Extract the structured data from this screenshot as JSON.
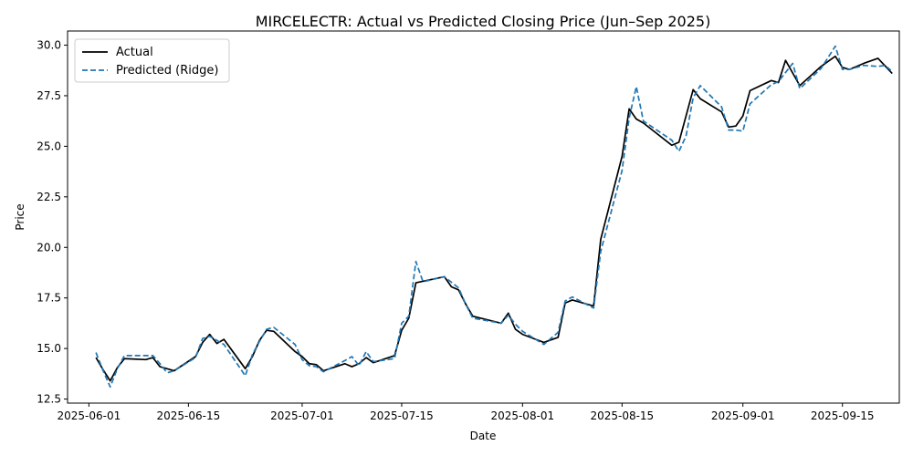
{
  "chart_data": {
    "type": "line",
    "title": "MIRCELECTR: Actual vs Predicted Closing Price (Jun–Sep 2025)",
    "xlabel": "Date",
    "ylabel": "Price",
    "ylim": [
      12.3,
      30.7
    ],
    "xlim": [
      "2025-05-29",
      "2025-09-23"
    ],
    "x_ticks": [
      "2025-06-01",
      "2025-06-15",
      "2025-07-01",
      "2025-07-15",
      "2025-08-01",
      "2025-08-15",
      "2025-09-01",
      "2025-09-15"
    ],
    "y_ticks": [
      "12.5",
      "15.0",
      "17.5",
      "20.0",
      "22.5",
      "25.0",
      "27.5",
      "30.0"
    ],
    "grid": false,
    "legend_position": "top-left",
    "series": [
      {
        "name": "Actual",
        "color": "#000000",
        "style": "solid",
        "points": [
          [
            "2025-06-02",
            14.55
          ],
          [
            "2025-06-03",
            13.95
          ],
          [
            "2025-06-04",
            13.4
          ],
          [
            "2025-06-05",
            14.05
          ],
          [
            "2025-06-06",
            14.5
          ],
          [
            "2025-06-09",
            14.45
          ],
          [
            "2025-06-10",
            14.55
          ],
          [
            "2025-06-11",
            14.1
          ],
          [
            "2025-06-12",
            14.0
          ],
          [
            "2025-06-13",
            13.9
          ],
          [
            "2025-06-16",
            14.6
          ],
          [
            "2025-06-17",
            15.3
          ],
          [
            "2025-06-18",
            15.7
          ],
          [
            "2025-06-19",
            15.25
          ],
          [
            "2025-06-20",
            15.45
          ],
          [
            "2025-06-23",
            14.0
          ],
          [
            "2025-06-24",
            14.6
          ],
          [
            "2025-06-25",
            15.4
          ],
          [
            "2025-06-26",
            15.9
          ],
          [
            "2025-06-27",
            15.85
          ],
          [
            "2025-06-30",
            14.85
          ],
          [
            "2025-07-01",
            14.6
          ],
          [
            "2025-07-02",
            14.25
          ],
          [
            "2025-07-03",
            14.2
          ],
          [
            "2025-07-04",
            13.9
          ],
          [
            "2025-07-07",
            14.25
          ],
          [
            "2025-07-08",
            14.1
          ],
          [
            "2025-07-09",
            14.25
          ],
          [
            "2025-07-10",
            14.55
          ],
          [
            "2025-07-11",
            14.3
          ],
          [
            "2025-07-14",
            14.65
          ],
          [
            "2025-07-15",
            15.9
          ],
          [
            "2025-07-16",
            16.5
          ],
          [
            "2025-07-17",
            18.25
          ],
          [
            "2025-07-21",
            18.55
          ],
          [
            "2025-07-22",
            18.05
          ],
          [
            "2025-07-23",
            17.9
          ],
          [
            "2025-07-24",
            17.2
          ],
          [
            "2025-07-25",
            16.6
          ],
          [
            "2025-07-29",
            16.25
          ],
          [
            "2025-07-30",
            16.75
          ],
          [
            "2025-07-31",
            15.95
          ],
          [
            "2025-08-01",
            15.7
          ],
          [
            "2025-08-04",
            15.3
          ],
          [
            "2025-08-06",
            15.55
          ],
          [
            "2025-08-07",
            17.25
          ],
          [
            "2025-08-08",
            17.4
          ],
          [
            "2025-08-11",
            17.1
          ],
          [
            "2025-08-12",
            20.4
          ],
          [
            "2025-08-15",
            24.5
          ],
          [
            "2025-08-16",
            26.85
          ],
          [
            "2025-08-17",
            26.35
          ],
          [
            "2025-08-18",
            26.15
          ],
          [
            "2025-08-22",
            25.05
          ],
          [
            "2025-08-23",
            25.2
          ],
          [
            "2025-08-25",
            27.8
          ],
          [
            "2025-08-26",
            27.35
          ],
          [
            "2025-08-29",
            26.7
          ],
          [
            "2025-08-30",
            25.95
          ],
          [
            "2025-08-31",
            26.0
          ],
          [
            "2025-09-01",
            26.5
          ],
          [
            "2025-09-02",
            27.75
          ],
          [
            "2025-09-05",
            28.25
          ],
          [
            "2025-09-06",
            28.15
          ],
          [
            "2025-09-07",
            29.25
          ],
          [
            "2025-09-09",
            28.0
          ],
          [
            "2025-09-12",
            28.95
          ],
          [
            "2025-09-14",
            29.45
          ],
          [
            "2025-09-15",
            28.9
          ],
          [
            "2025-09-16",
            28.8
          ],
          [
            "2025-09-18",
            29.1
          ],
          [
            "2025-09-20",
            29.35
          ],
          [
            "2025-09-22",
            28.6
          ]
        ]
      },
      {
        "name": "Predicted (Ridge)",
        "color": "#1f77b4",
        "style": "dashed",
        "points": [
          [
            "2025-06-02",
            14.8
          ],
          [
            "2025-06-03",
            13.9
          ],
          [
            "2025-06-04",
            13.1
          ],
          [
            "2025-06-05",
            14.0
          ],
          [
            "2025-06-06",
            14.65
          ],
          [
            "2025-06-09",
            14.65
          ],
          [
            "2025-06-10",
            14.65
          ],
          [
            "2025-06-11",
            14.25
          ],
          [
            "2025-06-12",
            13.8
          ],
          [
            "2025-06-13",
            13.9
          ],
          [
            "2025-06-16",
            14.55
          ],
          [
            "2025-06-17",
            15.5
          ],
          [
            "2025-06-18",
            15.6
          ],
          [
            "2025-06-19",
            15.4
          ],
          [
            "2025-06-20",
            15.2
          ],
          [
            "2025-06-23",
            13.65
          ],
          [
            "2025-06-24",
            14.7
          ],
          [
            "2025-06-25",
            15.35
          ],
          [
            "2025-06-26",
            15.95
          ],
          [
            "2025-06-27",
            16.05
          ],
          [
            "2025-06-30",
            15.2
          ],
          [
            "2025-07-01",
            14.45
          ],
          [
            "2025-07-02",
            14.15
          ],
          [
            "2025-07-03",
            14.1
          ],
          [
            "2025-07-04",
            13.85
          ],
          [
            "2025-07-07",
            14.4
          ],
          [
            "2025-07-08",
            14.6
          ],
          [
            "2025-07-09",
            14.15
          ],
          [
            "2025-07-10",
            14.85
          ],
          [
            "2025-07-11",
            14.35
          ],
          [
            "2025-07-14",
            14.5
          ],
          [
            "2025-07-15",
            16.25
          ],
          [
            "2025-07-16",
            16.6
          ],
          [
            "2025-07-17",
            19.3
          ],
          [
            "2025-07-18",
            18.3
          ],
          [
            "2025-07-21",
            18.55
          ],
          [
            "2025-07-23",
            18.0
          ],
          [
            "2025-07-24",
            17.2
          ],
          [
            "2025-07-25",
            16.5
          ],
          [
            "2025-07-29",
            16.25
          ],
          [
            "2025-07-30",
            16.65
          ],
          [
            "2025-07-31",
            16.2
          ],
          [
            "2025-08-01",
            15.85
          ],
          [
            "2025-08-04",
            15.2
          ],
          [
            "2025-08-05",
            15.5
          ],
          [
            "2025-08-06",
            15.8
          ],
          [
            "2025-08-07",
            17.35
          ],
          [
            "2025-08-08",
            17.55
          ],
          [
            "2025-08-11",
            17.0
          ],
          [
            "2025-08-12",
            19.8
          ],
          [
            "2025-08-15",
            23.8
          ],
          [
            "2025-08-16",
            26.4
          ],
          [
            "2025-08-17",
            27.95
          ],
          [
            "2025-08-18",
            26.25
          ],
          [
            "2025-08-22",
            25.3
          ],
          [
            "2025-08-23",
            24.75
          ],
          [
            "2025-08-24",
            25.5
          ],
          [
            "2025-08-25",
            27.4
          ],
          [
            "2025-08-26",
            28.0
          ],
          [
            "2025-08-29",
            26.95
          ],
          [
            "2025-08-30",
            25.8
          ],
          [
            "2025-08-31",
            25.8
          ],
          [
            "2025-09-01",
            25.75
          ],
          [
            "2025-09-02",
            27.1
          ],
          [
            "2025-09-05",
            28.05
          ],
          [
            "2025-09-06",
            28.2
          ],
          [
            "2025-09-08",
            29.1
          ],
          [
            "2025-09-09",
            27.85
          ],
          [
            "2025-09-12",
            28.85
          ],
          [
            "2025-09-14",
            29.95
          ],
          [
            "2025-09-15",
            28.8
          ],
          [
            "2025-09-16",
            28.8
          ],
          [
            "2025-09-18",
            29.0
          ],
          [
            "2025-09-20",
            28.95
          ],
          [
            "2025-09-21",
            29.0
          ],
          [
            "2025-09-22",
            28.7
          ]
        ]
      }
    ]
  }
}
